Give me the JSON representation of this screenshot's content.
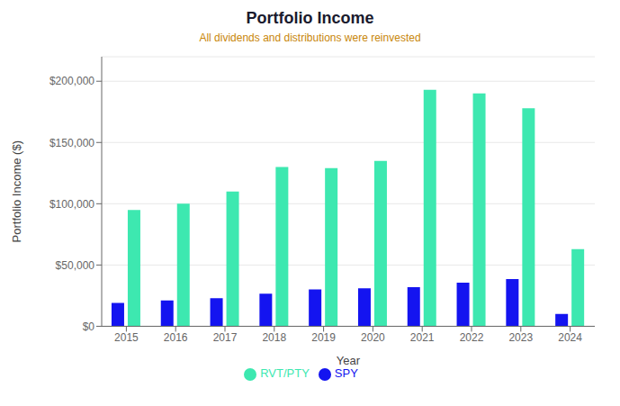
{
  "chart_data": {
    "type": "bar",
    "title": "Portfolio Income",
    "subtitle": "All dividends and distributions were reinvested",
    "xlabel": "Year",
    "ylabel": "Portfolio Income ($)",
    "categories": [
      "2015",
      "2016",
      "2017",
      "2018",
      "2019",
      "2020",
      "2021",
      "2022",
      "2023",
      "2024"
    ],
    "series": [
      {
        "name": "SPY",
        "color": "#1414f0",
        "values": [
          19000,
          21000,
          23000,
          26500,
          30000,
          31000,
          32000,
          35500,
          38500,
          10000
        ]
      },
      {
        "name": "RVT/PTY",
        "color": "#3de8b0",
        "values": [
          95000,
          100000,
          110000,
          130000,
          129000,
          135000,
          193000,
          190000,
          178000,
          63000
        ]
      }
    ],
    "ylim": [
      0,
      220000
    ],
    "yticks": [
      {
        "value": 0,
        "label": "$0"
      },
      {
        "value": 50000,
        "label": "$50,000"
      },
      {
        "value": 100000,
        "label": "$100,000"
      },
      {
        "value": 150000,
        "label": "$150,000"
      },
      {
        "value": 200000,
        "label": "$200,000"
      }
    ],
    "grid": true,
    "legend": "bottom"
  }
}
